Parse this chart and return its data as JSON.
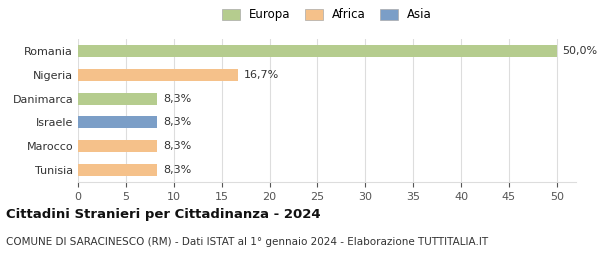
{
  "categories": [
    "Romania",
    "Nigeria",
    "Danimarca",
    "Israele",
    "Marocco",
    "Tunisia"
  ],
  "values": [
    50.0,
    16.7,
    8.3,
    8.3,
    8.3,
    8.3
  ],
  "labels": [
    "50,0%",
    "16,7%",
    "8,3%",
    "8,3%",
    "8,3%",
    "8,3%"
  ],
  "colors": [
    "#b5cc8e",
    "#f5c18a",
    "#b5cc8e",
    "#7b9ec7",
    "#f5c18a",
    "#f5c18a"
  ],
  "legend": [
    {
      "label": "Europa",
      "color": "#b5cc8e"
    },
    {
      "label": "Africa",
      "color": "#f5c18a"
    },
    {
      "label": "Asia",
      "color": "#7b9ec7"
    }
  ],
  "xlim": [
    0,
    52
  ],
  "xticks": [
    0,
    5,
    10,
    15,
    20,
    25,
    30,
    35,
    40,
    45,
    50
  ],
  "title": "Cittadini Stranieri per Cittadinanza - 2024",
  "subtitle": "COMUNE DI SARACINESCO (RM) - Dati ISTAT al 1° gennaio 2024 - Elaborazione TUTTITALIA.IT",
  "title_fontsize": 9.5,
  "subtitle_fontsize": 7.5,
  "background_color": "#ffffff",
  "grid_color": "#dddddd",
  "bar_height": 0.5,
  "label_fontsize": 8,
  "tick_fontsize": 8,
  "category_fontsize": 8
}
